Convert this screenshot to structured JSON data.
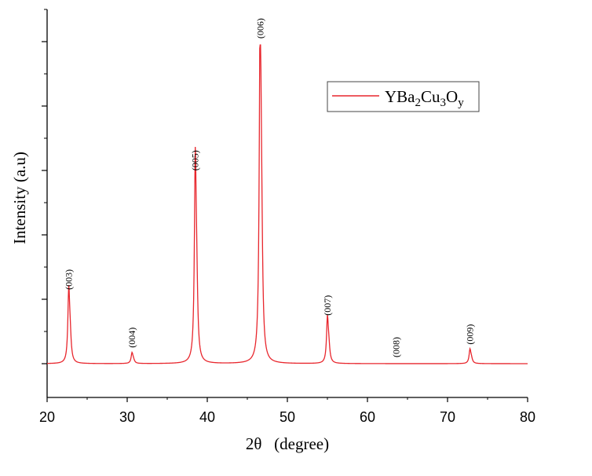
{
  "chart_data": {
    "type": "line",
    "xlabel": "2θ   (degree)",
    "ylabel": "Intensity (a.u)",
    "xlim": [
      20,
      80
    ],
    "x_ticks": [
      "20",
      "30",
      "40",
      "50",
      "60",
      "70",
      "80"
    ],
    "y_tick_labels_shown": false,
    "grid": false,
    "legend_position": "top-right",
    "series": [
      {
        "name": "YBa2Cu3Oy",
        "color": "#e8262d",
        "baseline": 0.01,
        "peaks": [
          {
            "x": 22.7,
            "y": 0.22,
            "label": "(003)"
          },
          {
            "x": 30.6,
            "y": 0.04,
            "label": "(004)"
          },
          {
            "x": 38.5,
            "y": 0.59,
            "label": "(005)"
          },
          {
            "x": 46.6,
            "y": 1.0,
            "label": "(006)"
          },
          {
            "x": 55.0,
            "y": 0.14,
            "label": "(007)"
          },
          {
            "x": 63.6,
            "y": 0.01,
            "label": "(008)"
          },
          {
            "x": 72.8,
            "y": 0.05,
            "label": "(009)"
          }
        ]
      }
    ],
    "legend": {
      "base1": "YBa",
      "sub1": "2",
      "base2": "Cu",
      "sub2": "3",
      "base3": "O",
      "sub3": "y"
    }
  }
}
